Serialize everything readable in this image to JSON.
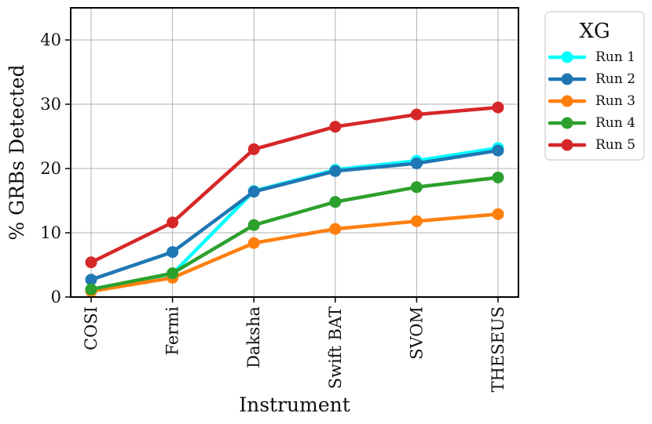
{
  "chart_data": {
    "type": "line",
    "xlabel": "Instrument",
    "ylabel": "% GRBs Detected",
    "categories": [
      "COSI",
      "Fermi",
      "Daksha",
      "Swift BAT",
      "SVOM",
      "THESEUS"
    ],
    "ylim": [
      0,
      45
    ],
    "yticks": [
      0,
      10,
      20,
      30,
      40
    ],
    "grid": true,
    "legend": {
      "title": "XG",
      "placement": "outside-right-top"
    },
    "series": [
      {
        "name": "Run 1",
        "color": "#00ffff",
        "values": [
          1.2,
          3.6,
          16.5,
          19.8,
          21.2,
          23.2
        ]
      },
      {
        "name": "Run 2",
        "color": "#1f77b4",
        "values": [
          2.7,
          7.0,
          16.4,
          19.6,
          20.8,
          22.8
        ]
      },
      {
        "name": "Run 3",
        "color": "#ff7f0e",
        "values": [
          0.9,
          3.0,
          8.4,
          10.6,
          11.8,
          12.9
        ]
      },
      {
        "name": "Run 4",
        "color": "#2ca02c",
        "values": [
          1.2,
          3.7,
          11.2,
          14.8,
          17.1,
          18.6
        ]
      },
      {
        "name": "Run 5",
        "color": "#d62728",
        "values": [
          5.4,
          11.6,
          23.0,
          26.5,
          28.4,
          29.5
        ]
      }
    ]
  }
}
